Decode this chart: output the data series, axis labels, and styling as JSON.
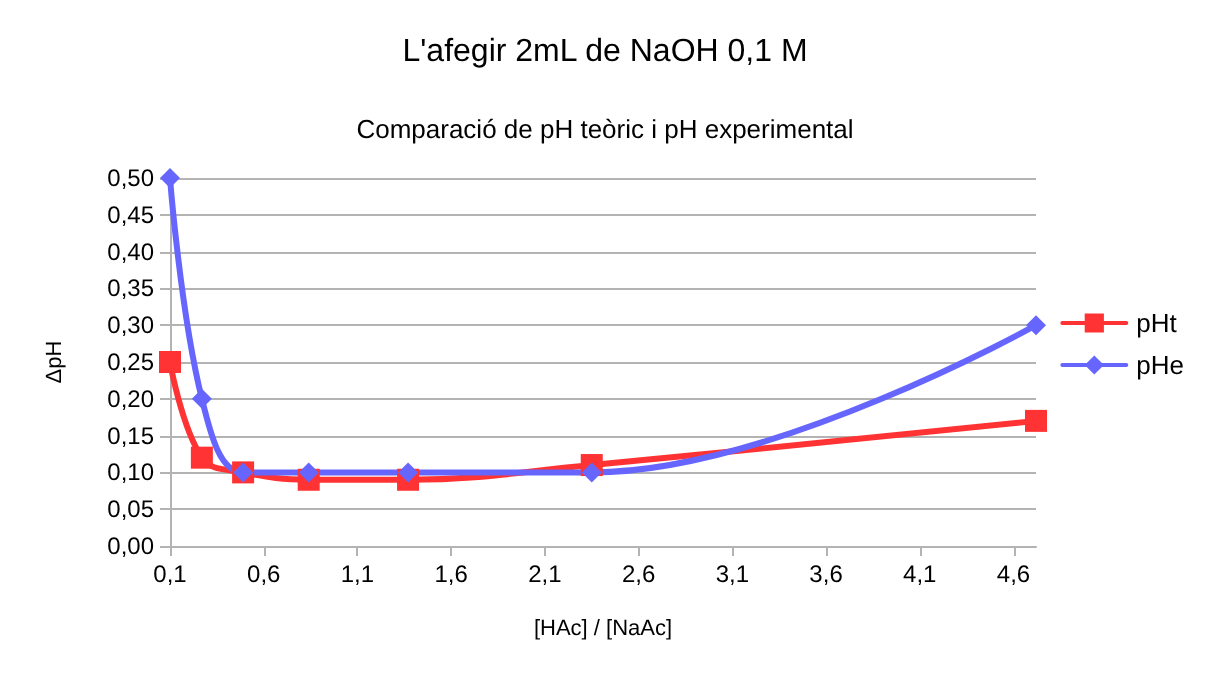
{
  "chart_data": {
    "type": "line",
    "title": "L'afegir 2mL de NaOH 0,1 M",
    "subtitle": "Comparació de pH teòric i pH experimental",
    "xlabel": "[HAc] / [NaAc]",
    "ylabel": "ΔpH",
    "series": [
      {
        "name": "pHt",
        "color": "#ff3333",
        "marker": "square",
        "x": [
          0.1,
          0.27,
          0.49,
          0.84,
          1.37,
          2.35,
          4.72
        ],
        "values": [
          0.25,
          0.12,
          0.1,
          0.09,
          0.09,
          0.11,
          0.17
        ]
      },
      {
        "name": "pHe",
        "color": "#6666ff",
        "marker": "diamond",
        "x": [
          0.1,
          0.27,
          0.49,
          0.84,
          1.37,
          2.35,
          4.72
        ],
        "values": [
          0.5,
          0.2,
          0.1,
          0.1,
          0.1,
          0.1,
          0.3
        ]
      }
    ],
    "xlim": [
      0.1,
      4.72
    ],
    "xticks": [
      {
        "value": 0.1,
        "label": "0,1"
      },
      {
        "value": 0.6,
        "label": "0,6"
      },
      {
        "value": 1.1,
        "label": "1,1"
      },
      {
        "value": 1.6,
        "label": "1,6"
      },
      {
        "value": 2.1,
        "label": "2,1"
      },
      {
        "value": 2.6,
        "label": "2,6"
      },
      {
        "value": 3.1,
        "label": "3,1"
      },
      {
        "value": 3.6,
        "label": "3,6"
      },
      {
        "value": 4.1,
        "label": "4,1"
      },
      {
        "value": 4.6,
        "label": "4,6"
      }
    ],
    "ylim": [
      0,
      0.5
    ],
    "yticks": [
      {
        "value": 0,
        "label": "0,00"
      },
      {
        "value": 0.05,
        "label": "0,05"
      },
      {
        "value": 0.1,
        "label": "0,10"
      },
      {
        "value": 0.15,
        "label": "0,15"
      },
      {
        "value": 0.2,
        "label": "0,20"
      },
      {
        "value": 0.25,
        "label": "0,25"
      },
      {
        "value": 0.3,
        "label": "0,30"
      },
      {
        "value": 0.35,
        "label": "0,35"
      },
      {
        "value": 0.4,
        "label": "0,40"
      },
      {
        "value": 0.45,
        "label": "0,45"
      },
      {
        "value": 0.5,
        "label": "0,50"
      }
    ],
    "grid": "y",
    "legend": "right"
  }
}
